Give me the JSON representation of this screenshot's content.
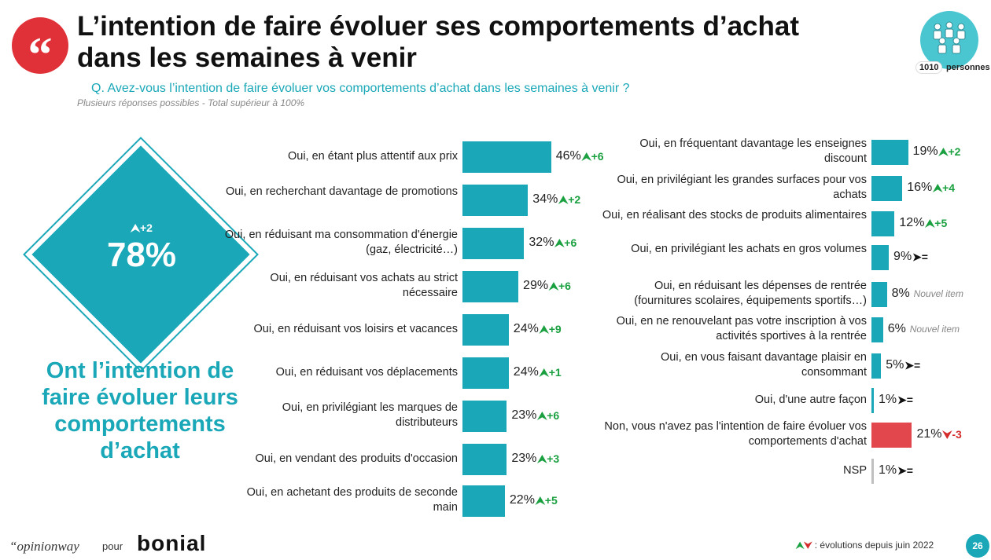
{
  "header": {
    "quote_mark": "“",
    "title": "L’intention de faire évoluer ses comportements d’achat dans les semaines à venir",
    "question": "Q. Avez-vous l’intention de faire évoluer vos comportements d’achat dans les semaines à venir ?",
    "note": "Plusieurs réponses possibles - Total supérieur à 100%",
    "sample_count": "1010",
    "sample_label": "personnes"
  },
  "highlight": {
    "evolution": "⮝+2",
    "value": "78%",
    "caption": "Ont l’intention de faire évoluer leurs comportements d’achat"
  },
  "colors": {
    "teal": "#1aa8b8",
    "red": "#e2474e",
    "gray": "#bfbfbf",
    "up": "#1aa040",
    "down": "#d42b2b"
  },
  "chart_data": [
    {
      "type": "bar",
      "orientation": "horizontal",
      "categories": [
        "Oui, en étant plus attentif aux prix",
        "Oui, en recherchant davantage de promotions",
        "Oui, en réduisant ma consommation d'énergie (gaz, électricité…)",
        "Oui, en réduisant vos achats au strict nécessaire",
        "Oui, en réduisant vos loisirs et vacances",
        "Oui, en réduisant vos déplacements",
        "Oui, en privilégiant les marques de distributeurs",
        "Oui, en vendant des produits d'occasion",
        "Oui, en achetant des produits de seconde main"
      ],
      "values": [
        46,
        34,
        32,
        29,
        24,
        24,
        23,
        23,
        22
      ],
      "value_labels": [
        "46%",
        "34%",
        "32%",
        "29%",
        "24%",
        "24%",
        "23%",
        "23%",
        "22%"
      ],
      "evolutions": [
        "+6",
        "+2",
        "+6",
        "+6",
        "+9",
        "+1",
        "+6",
        "+3",
        "+5"
      ],
      "evolution_dir": [
        "up",
        "up",
        "up",
        "up",
        "up",
        "up",
        "up",
        "up",
        "up"
      ],
      "colors": [
        "teal",
        "teal",
        "teal",
        "teal",
        "teal",
        "teal",
        "teal",
        "teal",
        "teal"
      ]
    },
    {
      "type": "bar",
      "orientation": "horizontal",
      "categories": [
        "Oui, en fréquentant davantage les enseignes discount",
        "Oui, en privilégiant les grandes surfaces pour vos achats",
        "Oui, en réalisant des stocks de produits alimentaires",
        "Oui, en privilégiant les achats en gros volumes",
        "Oui, en réduisant les dépenses de rentrée (fournitures scolaires, équipements sportifs…)",
        "Oui, en ne renouvelant pas votre inscription à vos activités sportives à la rentrée",
        "Oui, en vous faisant davantage plaisir en consommant",
        "Oui, d'une autre façon",
        "Non, vous n'avez pas l'intention de faire évoluer vos comportements d'achat",
        "NSP"
      ],
      "values": [
        19,
        16,
        12,
        9,
        8,
        6,
        5,
        1,
        21,
        1
      ],
      "value_labels": [
        "19%",
        "16%",
        "12%",
        "9%",
        "8%",
        "6%",
        "5%",
        "1%",
        "21%",
        "1%"
      ],
      "evolutions": [
        "+2",
        "+4",
        "+5",
        "=",
        "Nouvel item",
        "Nouvel item",
        "=",
        "=",
        "-3",
        "="
      ],
      "evolution_dir": [
        "up",
        "up",
        "up",
        "eq",
        "new",
        "new",
        "eq",
        "eq",
        "down",
        "eq"
      ],
      "colors": [
        "teal",
        "teal",
        "teal",
        "teal",
        "teal",
        "teal",
        "teal",
        "teal",
        "red",
        "gray"
      ]
    }
  ],
  "footer": {
    "opinionway": "“opinionway",
    "pour": "pour",
    "bonial": "bonial",
    "legend_up": "⮝",
    "legend_down": "⮟",
    "legend_text": ": évolutions depuis juin 2022",
    "page": "26"
  }
}
